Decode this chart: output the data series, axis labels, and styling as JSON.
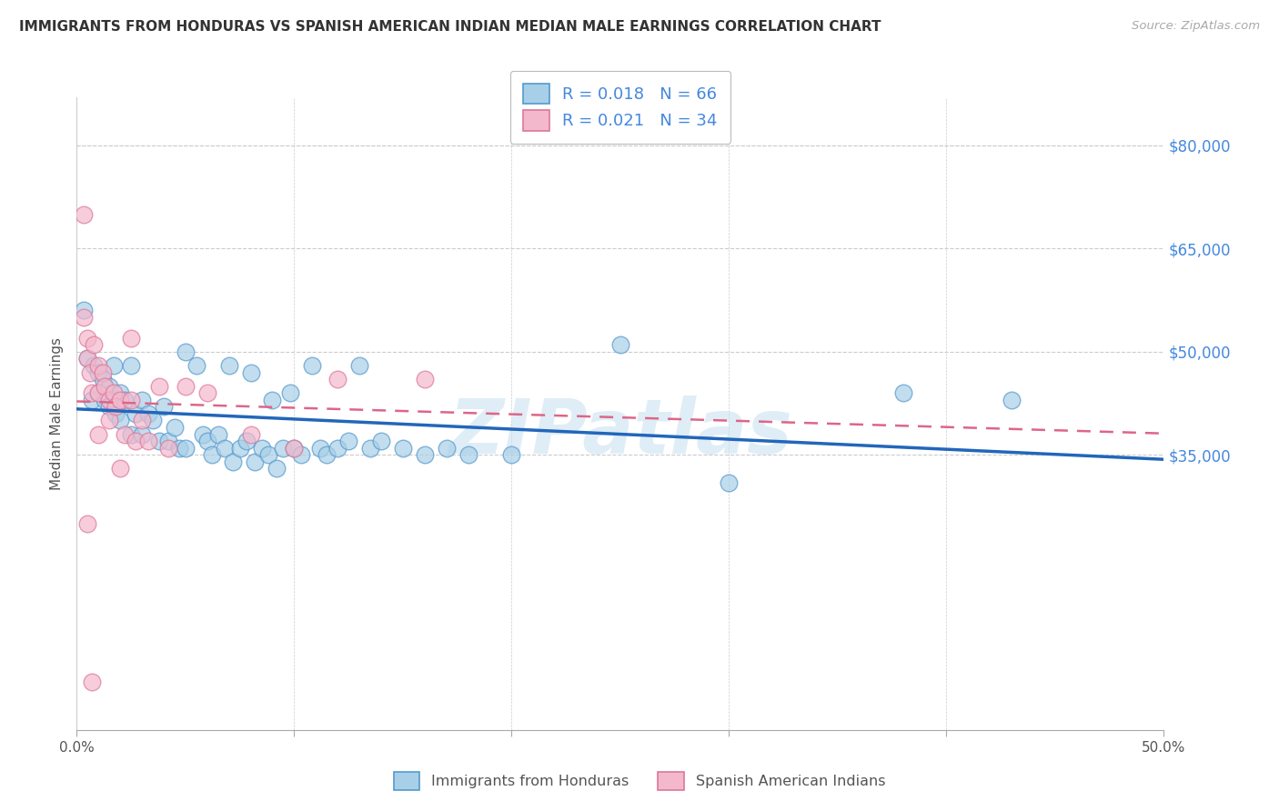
{
  "title": "IMMIGRANTS FROM HONDURAS VS SPANISH AMERICAN INDIAN MEDIAN MALE EARNINGS CORRELATION CHART",
  "source": "Source: ZipAtlas.com",
  "ylabel": "Median Male Earnings",
  "xlim": [
    0.0,
    0.5
  ],
  "ylim": [
    -5000,
    87000
  ],
  "legend1_label": "Immigrants from Honduras",
  "legend2_label": "Spanish American Indians",
  "r1": "0.018",
  "n1": "66",
  "r2": "0.021",
  "n2": "34",
  "blue_scatter_color": "#a8cfe8",
  "blue_edge_color": "#5599cc",
  "pink_scatter_color": "#f4b8cc",
  "pink_edge_color": "#dd7799",
  "line_blue_color": "#2266bb",
  "line_pink_color": "#dd6688",
  "watermark": "ZIPatlas",
  "blue_x": [
    0.003,
    0.005,
    0.007,
    0.008,
    0.01,
    0.01,
    0.012,
    0.013,
    0.015,
    0.015,
    0.017,
    0.018,
    0.02,
    0.02,
    0.022,
    0.025,
    0.025,
    0.027,
    0.03,
    0.03,
    0.033,
    0.035,
    0.038,
    0.04,
    0.042,
    0.045,
    0.047,
    0.05,
    0.05,
    0.055,
    0.058,
    0.06,
    0.062,
    0.065,
    0.068,
    0.07,
    0.072,
    0.075,
    0.078,
    0.08,
    0.082,
    0.085,
    0.088,
    0.09,
    0.092,
    0.095,
    0.098,
    0.1,
    0.103,
    0.108,
    0.112,
    0.115,
    0.12,
    0.125,
    0.13,
    0.135,
    0.14,
    0.15,
    0.16,
    0.17,
    0.18,
    0.2,
    0.25,
    0.3,
    0.38,
    0.43
  ],
  "blue_y": [
    56000,
    49000,
    43000,
    48000,
    47000,
    44000,
    46000,
    43000,
    45000,
    42000,
    48000,
    41000,
    44000,
    40000,
    43000,
    48000,
    38000,
    41000,
    43000,
    38000,
    41000,
    40000,
    37000,
    42000,
    37000,
    39000,
    36000,
    50000,
    36000,
    48000,
    38000,
    37000,
    35000,
    38000,
    36000,
    48000,
    34000,
    36000,
    37000,
    47000,
    34000,
    36000,
    35000,
    43000,
    33000,
    36000,
    44000,
    36000,
    35000,
    48000,
    36000,
    35000,
    36000,
    37000,
    48000,
    36000,
    37000,
    36000,
    35000,
    36000,
    35000,
    35000,
    51000,
    31000,
    44000,
    43000
  ],
  "pink_x": [
    0.003,
    0.005,
    0.005,
    0.006,
    0.007,
    0.008,
    0.01,
    0.01,
    0.012,
    0.013,
    0.015,
    0.015,
    0.017,
    0.018,
    0.02,
    0.022,
    0.025,
    0.027,
    0.03,
    0.033,
    0.038,
    0.042,
    0.05,
    0.06,
    0.08,
    0.1,
    0.12,
    0.16,
    0.003,
    0.005,
    0.007,
    0.01,
    0.02,
    0.025
  ],
  "pink_y": [
    55000,
    52000,
    49000,
    47000,
    44000,
    51000,
    48000,
    44000,
    47000,
    45000,
    43000,
    40000,
    44000,
    42000,
    43000,
    38000,
    43000,
    37000,
    40000,
    37000,
    45000,
    36000,
    45000,
    44000,
    38000,
    36000,
    46000,
    46000,
    70000,
    25000,
    2000,
    38000,
    33000,
    52000
  ]
}
